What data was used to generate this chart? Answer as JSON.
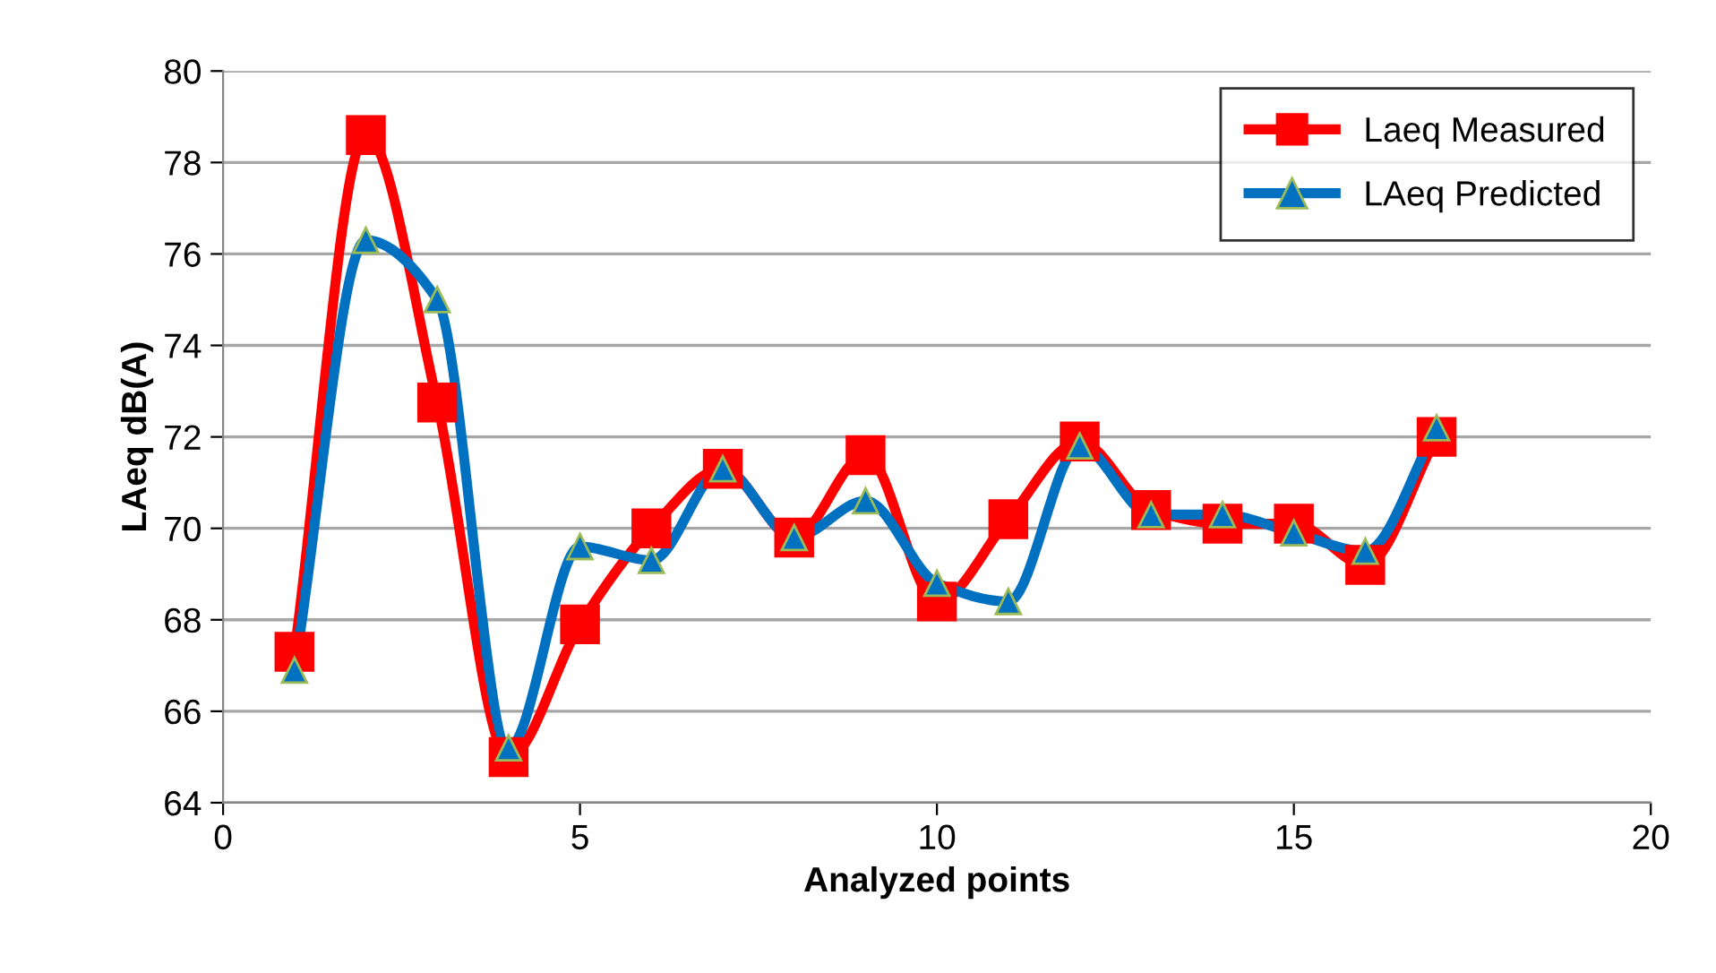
{
  "chart_data": {
    "type": "line",
    "xlabel": "Analyzed points",
    "ylabel": "LAeq dB(A)",
    "x": [
      1,
      2,
      3,
      4,
      5,
      6,
      7,
      8,
      9,
      10,
      11,
      12,
      13,
      14,
      15,
      16,
      17
    ],
    "series": [
      {
        "name": "Laeq Measured",
        "color": "#ff0000",
        "marker": "square",
        "values": [
          67.3,
          78.6,
          72.75,
          65.0,
          67.9,
          70.0,
          71.3,
          69.8,
          71.6,
          68.4,
          70.2,
          71.9,
          70.4,
          70.1,
          70.1,
          69.2,
          72.0
        ]
      },
      {
        "name": "LAeq Predicted",
        "color": "#0070c0",
        "marker": "triangle",
        "values": [
          66.9,
          76.3,
          75.0,
          65.2,
          69.6,
          69.3,
          71.3,
          69.8,
          70.6,
          68.8,
          68.4,
          71.8,
          70.3,
          70.3,
          69.9,
          69.5,
          72.2
        ]
      }
    ],
    "xlim": [
      0,
      20
    ],
    "xticks": [
      0,
      5,
      10,
      15,
      20
    ],
    "ylim": [
      64,
      80
    ],
    "yticks": [
      64,
      66,
      68,
      70,
      72,
      74,
      76,
      78,
      80
    ],
    "grid": "y",
    "legend": "top right",
    "line_style": "solid"
  }
}
